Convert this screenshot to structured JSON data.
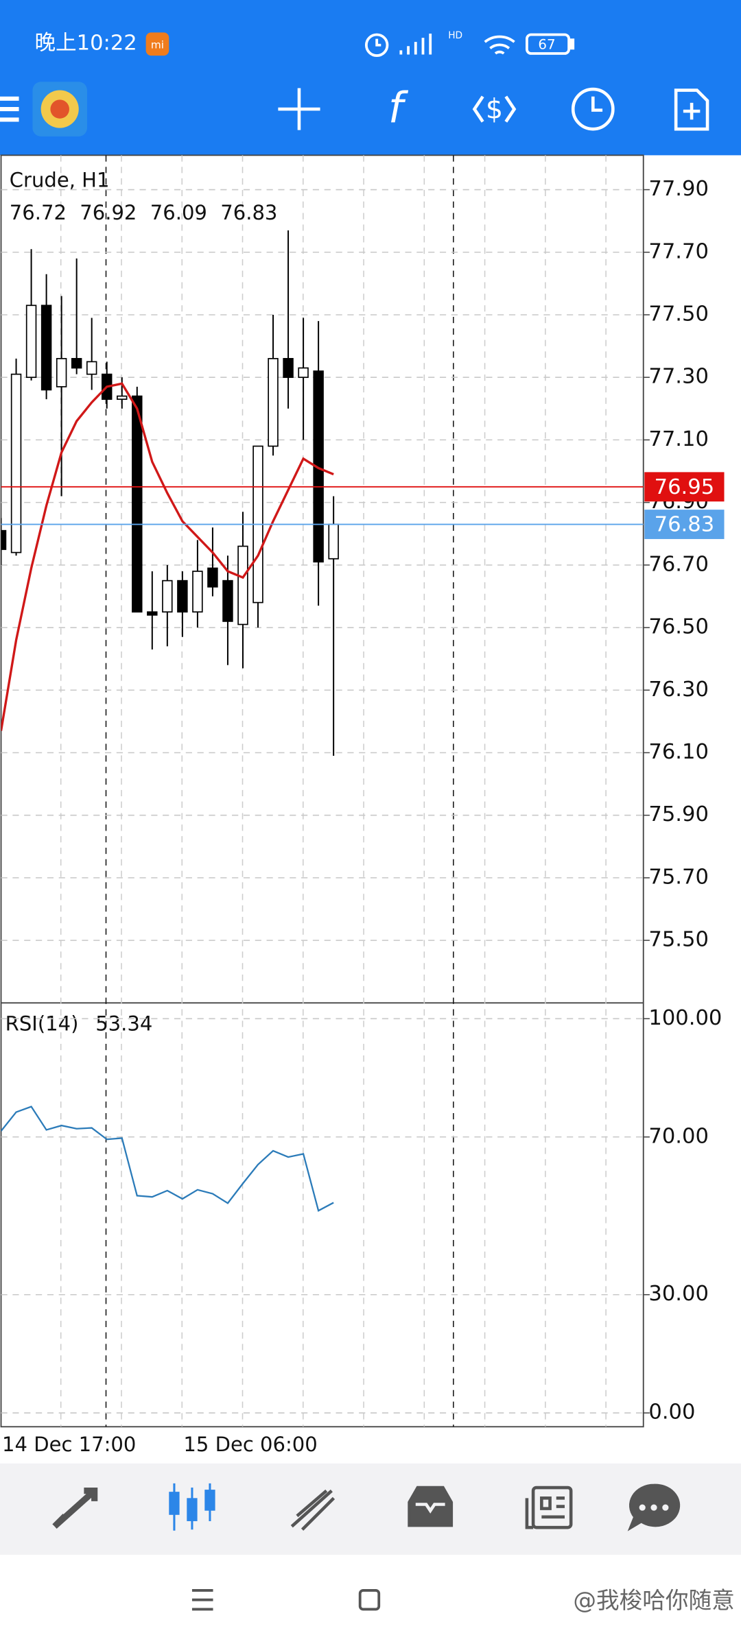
{
  "status_bar": {
    "time": "晚上10:22",
    "network": "HD",
    "battery": "67"
  },
  "chart_data": [
    {
      "type": "candlestick",
      "title": "Crude, H1",
      "categories": [
        "14 Dec 17:00",
        null,
        null,
        null,
        null,
        null,
        null,
        null,
        null,
        null,
        null,
        null,
        "15 Dec 06:00",
        null,
        null,
        null,
        null,
        null,
        null,
        null,
        null,
        null,
        null
      ],
      "open": [
        76.81,
        76.74,
        77.3,
        77.53,
        77.27,
        77.36,
        77.31,
        77.31,
        77.23,
        77.24,
        76.55,
        76.55,
        76.65,
        76.55,
        76.69,
        76.65,
        76.51,
        76.58,
        77.08,
        77.36,
        77.3,
        77.32,
        76.72
      ],
      "high": [
        76.85,
        77.36,
        77.71,
        77.63,
        77.56,
        77.68,
        77.49,
        77.35,
        77.3,
        77.27,
        76.68,
        76.7,
        76.68,
        76.78,
        76.82,
        76.73,
        76.87,
        77.08,
        77.5,
        77.77,
        77.49,
        77.48,
        76.92
      ],
      "low": [
        76.7,
        76.73,
        77.29,
        77.23,
        76.92,
        77.31,
        77.26,
        77.2,
        77.2,
        76.55,
        76.43,
        76.44,
        76.47,
        76.5,
        76.6,
        76.38,
        76.37,
        76.5,
        77.05,
        77.2,
        77.1,
        76.57,
        76.09
      ],
      "close": [
        76.75,
        77.31,
        77.53,
        77.26,
        77.36,
        77.33,
        77.35,
        77.23,
        77.24,
        76.55,
        76.54,
        76.65,
        76.55,
        76.68,
        76.63,
        76.52,
        76.76,
        77.08,
        77.36,
        77.3,
        77.33,
        76.71,
        76.83
      ],
      "up_color": "#ffffff",
      "down_color": "#000000",
      "overlay": {
        "color": "#d01818",
        "values": [
          76.17,
          76.46,
          76.69,
          76.89,
          77.06,
          77.16,
          77.22,
          77.27,
          77.28,
          77.2,
          77.03,
          76.93,
          76.84,
          76.79,
          76.74,
          76.68,
          76.66,
          76.73,
          76.84,
          76.94,
          77.04,
          77.01,
          76.99
        ]
      },
      "price_lines": [
        {
          "value": 76.95,
          "color": "#e01010"
        },
        {
          "value": 76.83,
          "color": "#5aa3ea"
        }
      ],
      "ylim": [
        75.3,
        78.01
      ],
      "yticks": [
        {
          "value": 77.9,
          "label": "77.90"
        },
        {
          "value": 77.7,
          "label": "77.70"
        },
        {
          "value": 77.5,
          "label": "77.50"
        },
        {
          "value": 77.3,
          "label": "77.30"
        },
        {
          "value": 77.1,
          "label": "77.10"
        },
        {
          "value": 76.9,
          "label": "76.90"
        },
        {
          "value": 76.7,
          "label": "76.70"
        },
        {
          "value": 76.5,
          "label": "76.50"
        },
        {
          "value": 76.3,
          "label": "76.30"
        },
        {
          "value": 76.1,
          "label": "76.10"
        },
        {
          "value": 75.9,
          "label": "75.90"
        },
        {
          "value": 75.7,
          "label": "75.70"
        },
        {
          "value": 75.5,
          "label": "75.50"
        }
      ],
      "grid": true
    },
    {
      "type": "line",
      "title": "RSI(14)",
      "series": [
        {
          "color": "#2b7bb9",
          "values": [
            71.5,
            76.3,
            77.7,
            71.8,
            72.9,
            72.1,
            72.3,
            69.4,
            69.7,
            55.1,
            54.8,
            56.4,
            54.3,
            56.6,
            55.6,
            53.2,
            58.2,
            63.0,
            66.5,
            64.9,
            65.7,
            51.3,
            53.34
          ]
        }
      ],
      "ylim": [
        -3.5,
        104
      ],
      "yticks": [
        {
          "value": 100,
          "label": "100.00"
        },
        {
          "value": 70,
          "label": "70.00"
        },
        {
          "value": 30,
          "label": "30.00"
        },
        {
          "value": 0,
          "label": "0.00"
        }
      ],
      "grid": true
    }
  ],
  "watermark": "@我梭哈你随意"
}
